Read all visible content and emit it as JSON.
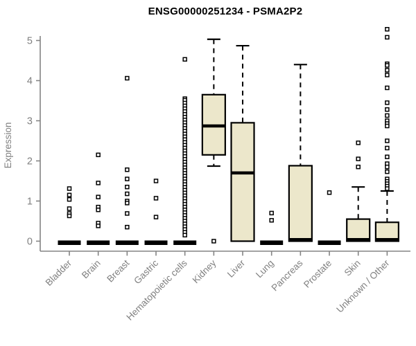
{
  "title": "ENSG00000251234 - PSMA2P2",
  "colors": {
    "box_fill": "#ECE7CB",
    "box_stroke": "#000000",
    "median": "#000000",
    "whisker": "#000000",
    "outlier_stroke": "#000000",
    "outlier_fill": "#ffffff",
    "axis": "#848484",
    "tick_label": "#808080",
    "title": "#000000",
    "background": "#ffffff"
  },
  "chart_data": {
    "type": "boxplot",
    "title": "ENSG00000251234 - PSMA2P2",
    "xlabel": "",
    "ylabel": "Expression",
    "ylim": [
      0,
      5.5
    ],
    "y_ticks": [
      0,
      1,
      2,
      3,
      4,
      5
    ],
    "grid": false,
    "legend": "none",
    "categories": [
      "Bladder",
      "Brain",
      "Breast",
      "Gastric",
      "Hematopoietic cells",
      "Kidney",
      "Liver",
      "Lung",
      "Pancreas",
      "Prostate",
      "Skin",
      "Unknown / Other"
    ],
    "series": [
      {
        "name": "Bladder",
        "whisker_low": 0,
        "q1": 0,
        "median": 0,
        "q3": 0,
        "whisker_high": 0,
        "outliers": [
          1.31,
          1.15,
          1.04,
          0.81,
          0.69,
          0.63
        ]
      },
      {
        "name": "Brain",
        "whisker_low": 0,
        "q1": 0,
        "median": 0,
        "q3": 0,
        "whisker_high": 0,
        "outliers": [
          2.15,
          1.45,
          1.1,
          0.85,
          0.78,
          0.45,
          0.38
        ]
      },
      {
        "name": "Breast",
        "whisker_low": 0,
        "q1": 0,
        "median": 0,
        "q3": 0,
        "whisker_high": 0,
        "outliers": [
          4.06,
          1.78,
          1.55,
          1.35,
          1.18,
          1.0,
          0.95,
          0.69,
          0.35
        ]
      },
      {
        "name": "Gastric",
        "whisker_low": 0,
        "q1": 0,
        "median": 0,
        "q3": 0,
        "whisker_high": 0,
        "outliers": [
          1.5,
          1.07,
          0.6
        ]
      },
      {
        "name": "Hematopoietic cells",
        "whisker_low": 0,
        "q1": 0,
        "median": 0,
        "q3": 0,
        "whisker_high": 0,
        "outliers": [
          4.53,
          3.55,
          3.51,
          3.44,
          3.37,
          3.3,
          3.23,
          3.16,
          3.09,
          3.02,
          2.95,
          2.88,
          2.81,
          2.74,
          2.67,
          2.6,
          2.53,
          2.46,
          2.39,
          2.32,
          2.25,
          2.18,
          2.11,
          2.04,
          1.97,
          1.9,
          1.83,
          1.76,
          1.69,
          1.62,
          1.55,
          1.48,
          1.41,
          1.34,
          1.27,
          1.2,
          1.13,
          1.06,
          0.99,
          0.92,
          0.85,
          0.78,
          0.71,
          0.64,
          0.57,
          0.5,
          0.43,
          0.36,
          0.29,
          0.22,
          0.15
        ]
      },
      {
        "name": "Kidney",
        "whisker_low": 1.87,
        "q1": 2.15,
        "median": 2.87,
        "q3": 3.65,
        "whisker_high": 5.03,
        "outliers": [
          0
        ]
      },
      {
        "name": "Liver",
        "whisker_low": 0,
        "q1": 0,
        "median": 1.7,
        "q3": 2.95,
        "whisker_high": 4.87,
        "outliers": []
      },
      {
        "name": "Lung",
        "whisker_low": 0,
        "q1": 0,
        "median": 0,
        "q3": 0,
        "whisker_high": 0,
        "outliers": [
          0.7,
          0.52
        ]
      },
      {
        "name": "Pancreas",
        "whisker_low": 0,
        "q1": 0,
        "median": 0,
        "q3": 1.88,
        "whisker_high": 4.4,
        "outliers": []
      },
      {
        "name": "Prostate",
        "whisker_low": 0,
        "q1": 0,
        "median": 0,
        "q3": 0,
        "whisker_high": 0,
        "outliers": [
          1.21
        ]
      },
      {
        "name": "Skin",
        "whisker_low": 0,
        "q1": 0,
        "median": 0,
        "q3": 0.55,
        "whisker_high": 1.35,
        "outliers": [
          2.45,
          2.05,
          1.85
        ]
      },
      {
        "name": "Unknown / Other",
        "whisker_low": 0,
        "q1": 0,
        "median": 0,
        "q3": 0.47,
        "whisker_high": 1.25,
        "outliers": [
          5.28,
          5.08,
          4.42,
          4.38,
          4.26,
          4.14,
          3.82,
          3.45,
          3.28,
          3.13,
          3.0,
          2.93,
          2.87,
          2.5,
          2.32,
          2.1,
          1.93,
          1.85,
          1.73,
          1.55,
          1.49,
          1.43,
          1.37,
          1.31
        ]
      }
    ]
  }
}
